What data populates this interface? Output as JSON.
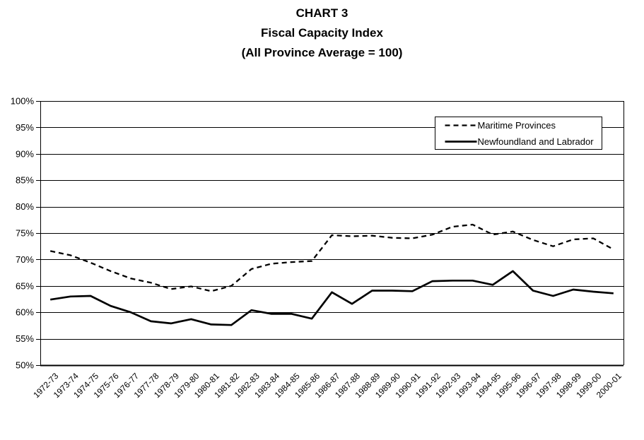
{
  "page": {
    "background": "#ffffff",
    "ink_color": "#000000"
  },
  "title": {
    "line1": "CHART 3",
    "line2": "Fiscal Capacity Index",
    "line3": "(All Province Average = 100)"
  },
  "chart_data": {
    "type": "line",
    "title": "CHART 3",
    "subtitle": "Fiscal Capacity Index (All Province Average = 100)",
    "categories": [
      "1972-73",
      "1973-74",
      "1974-75",
      "1975-76",
      "1976-77",
      "1977-78",
      "1978-79",
      "1979-80",
      "1980-81",
      "1981-82",
      "1982-83",
      "1983-84",
      "1984-85",
      "1985-86",
      "1986-87",
      "1987-88",
      "1988-89",
      "1989-90",
      "1990-91",
      "1991-92",
      "1992-93",
      "1993-94",
      "1994-95",
      "1995-96",
      "1996-97",
      "1997-98",
      "1998-99",
      "1999-00",
      "2000-01"
    ],
    "series": [
      {
        "name": "Maritime Provinces",
        "style": "dashed",
        "color": "#000000",
        "values": [
          71.6,
          70.8,
          69.4,
          67.8,
          66.4,
          65.6,
          64.4,
          64.9,
          64.0,
          65.0,
          68.2,
          69.2,
          69.5,
          69.7,
          74.6,
          74.4,
          74.5,
          74.1,
          74.0,
          74.7,
          76.2,
          76.6,
          74.7,
          75.3,
          73.7,
          72.5,
          73.8,
          74.0,
          71.9
        ]
      },
      {
        "name": "Newfoundland and Labrador",
        "style": "solid",
        "color": "#000000",
        "values": [
          62.4,
          63.0,
          63.1,
          61.2,
          60.0,
          58.3,
          57.9,
          58.7,
          57.7,
          57.6,
          60.4,
          59.7,
          59.7,
          58.8,
          63.8,
          61.6,
          64.1,
          64.1,
          64.0,
          65.9,
          66.0,
          66.0,
          65.2,
          67.8,
          64.1,
          63.1,
          64.3,
          63.9,
          63.6
        ]
      }
    ],
    "xlabel": "",
    "ylabel": "",
    "ylim": [
      50,
      100
    ],
    "ytick_step": 5,
    "ytick_labels": [
      "50%",
      "55%",
      "60%",
      "65%",
      "70%",
      "75%",
      "80%",
      "85%",
      "90%",
      "95%",
      "100%"
    ],
    "xtick_rotation": 45,
    "grid": "horizontal",
    "legend_position": "top-right-inside",
    "line_color": "#000000",
    "background": "#ffffff"
  }
}
